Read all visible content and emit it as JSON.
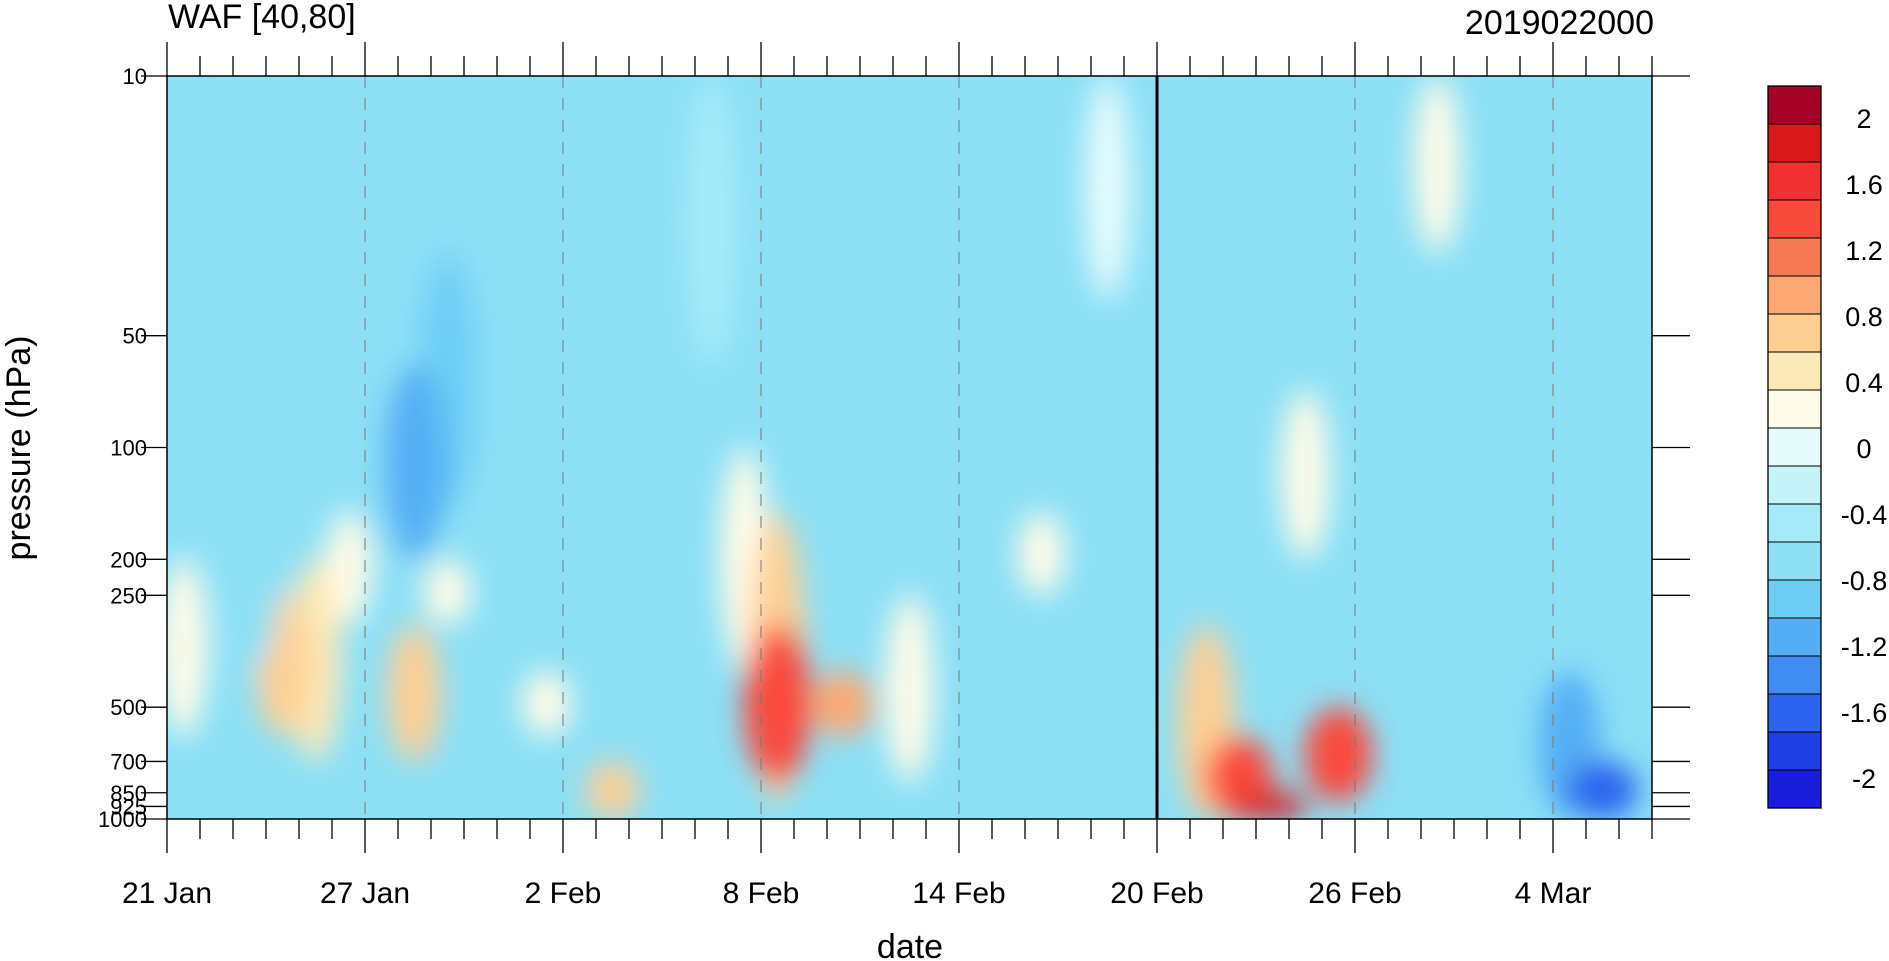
{
  "chart_data": {
    "type": "heatmap",
    "title": "WAF [40,80]",
    "subtitle": "2019022000",
    "xlabel": "date",
    "ylabel": "pressure (hPa)",
    "x_ticks": [
      {
        "day": 0,
        "label": "21 Jan"
      },
      {
        "day": 6,
        "label": "27 Jan"
      },
      {
        "day": 12,
        "label": "2 Feb"
      },
      {
        "day": 18,
        "label": "8 Feb"
      },
      {
        "day": 24,
        "label": "14 Feb"
      },
      {
        "day": 30,
        "label": "20 Feb"
      },
      {
        "day": 36,
        "label": "26 Feb"
      },
      {
        "day": 42,
        "label": "4 Mar"
      }
    ],
    "xlim_days": [
      0,
      45
    ],
    "y_ticks": [
      {
        "p": 10,
        "label": "10"
      },
      {
        "p": 50,
        "label": "50"
      },
      {
        "p": 100,
        "label": "100"
      },
      {
        "p": 200,
        "label": "200"
      },
      {
        "p": 250,
        "label": "250"
      },
      {
        "p": 500,
        "label": "500"
      },
      {
        "p": 700,
        "label": "700"
      },
      {
        "p": 850,
        "label": "850"
      },
      {
        "p": 925,
        "label": "925"
      },
      {
        "p": 1000,
        "label": "1000"
      }
    ],
    "ylim": [
      1000,
      10
    ],
    "y_scale": "log",
    "forecast_start_day": 30,
    "colorbar": {
      "levels": [
        "2",
        "1.6",
        "1.2",
        "0.8",
        "0.4",
        "0",
        "-0.4",
        "-0.8",
        "-1.2",
        "-1.6",
        "-2"
      ],
      "colors": [
        "#a50026",
        "#d7191c",
        "#f03131",
        "#fa4a3c",
        "#f77a55",
        "#fca872",
        "#fdcf94",
        "#fde9b6",
        "#fefbe8",
        "#e6fcfc",
        "#c4f4f9",
        "#a4ebf7",
        "#8de0f6",
        "#6ecdf5",
        "#55aef4",
        "#3f8cf2",
        "#2c64ee",
        "#1e3fe6",
        "#1a1ddb"
      ]
    },
    "cells": [
      {
        "day": 0,
        "p_top": 10,
        "p_bot": 200,
        "value": -0.7
      },
      {
        "day": 0,
        "p_top": 200,
        "p_bot": 600,
        "value": 0.3
      },
      {
        "day": 2,
        "p_top": 10,
        "p_bot": 60,
        "value": -0.8
      },
      {
        "day": 2,
        "p_top": 150,
        "p_bot": 400,
        "value": -0.8
      },
      {
        "day": 3,
        "p_top": 10,
        "p_bot": 60,
        "value": -0.8
      },
      {
        "day": 3,
        "p_top": 250,
        "p_bot": 600,
        "value": 0.6
      },
      {
        "day": 4,
        "p_top": 200,
        "p_bot": 700,
        "value": 0.5
      },
      {
        "day": 5,
        "p_top": 150,
        "p_bot": 300,
        "value": 0.2
      },
      {
        "day": 6,
        "p_top": 50,
        "p_bot": 200,
        "value": -0.6
      },
      {
        "day": 7,
        "p_top": 60,
        "p_bot": 200,
        "value": -1.2
      },
      {
        "day": 7,
        "p_top": 300,
        "p_bot": 700,
        "value": 0.6
      },
      {
        "day": 8,
        "p_top": 30,
        "p_bot": 150,
        "value": -0.9
      },
      {
        "day": 8,
        "p_top": 200,
        "p_bot": 300,
        "value": 0.2
      },
      {
        "day": 11,
        "p_top": 400,
        "p_bot": 600,
        "value": 0.3
      },
      {
        "day": 13,
        "p_top": 700,
        "p_bot": 1000,
        "value": 0.6
      },
      {
        "day": 16,
        "p_top": 10,
        "p_bot": 60,
        "value": -0.4
      },
      {
        "day": 17,
        "p_top": 100,
        "p_bot": 400,
        "value": 0.3
      },
      {
        "day": 18,
        "p_top": 300,
        "p_bot": 800,
        "value": 1.5
      },
      {
        "day": 18,
        "p_top": 150,
        "p_bot": 900,
        "value": 0.8
      },
      {
        "day": 20,
        "p_top": 400,
        "p_bot": 600,
        "value": 1.0
      },
      {
        "day": 22,
        "p_top": 250,
        "p_bot": 800,
        "value": 0.3
      },
      {
        "day": 23,
        "p_top": 200,
        "p_bot": 300,
        "value": -0.7
      },
      {
        "day": 26,
        "p_top": 150,
        "p_bot": 250,
        "value": 0.2
      },
      {
        "day": 28,
        "p_top": 10,
        "p_bot": 40,
        "value": 0.1
      },
      {
        "day": 30,
        "p_top": 10,
        "p_bot": 100,
        "value": -0.8
      },
      {
        "day": 31,
        "p_top": 300,
        "p_bot": 1000,
        "value": 0.8
      },
      {
        "day": 32,
        "p_top": 600,
        "p_bot": 1000,
        "value": 1.5
      },
      {
        "day": 33,
        "p_top": 850,
        "p_bot": 1000,
        "value": 1.8
      },
      {
        "day": 34,
        "p_top": 70,
        "p_bot": 200,
        "value": 0.3
      },
      {
        "day": 35,
        "p_top": 500,
        "p_bot": 900,
        "value": 1.5
      },
      {
        "day": 38,
        "p_top": 10,
        "p_bot": 30,
        "value": 0.2
      },
      {
        "day": 42,
        "p_top": 400,
        "p_bot": 1000,
        "value": -1.2
      },
      {
        "day": 43,
        "p_top": 700,
        "p_bot": 1000,
        "value": -1.7
      },
      {
        "day": 44,
        "p_top": 150,
        "p_bot": 250,
        "value": -0.7
      }
    ]
  }
}
